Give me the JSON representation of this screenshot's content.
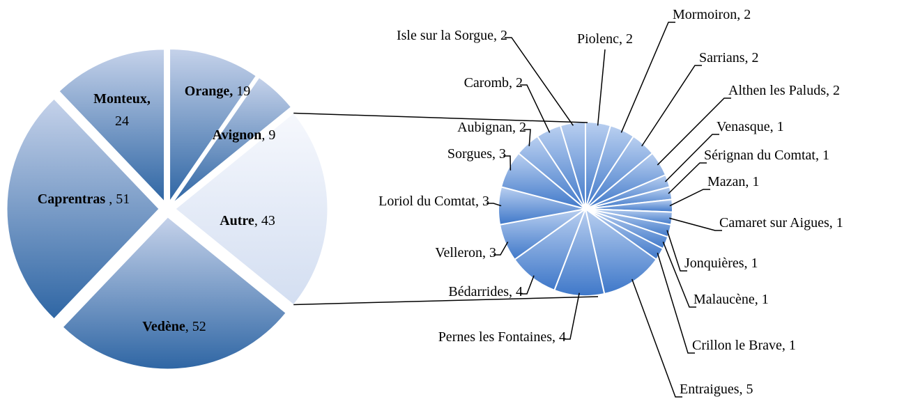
{
  "chart_data": [
    {
      "type": "pie",
      "categories": [
        "Orange,",
        "Avignon",
        "Autre",
        "Vedène",
        "Caprentras",
        "Monteux,"
      ],
      "values": [
        19,
        9,
        43,
        52,
        51,
        24
      ],
      "value_labels": [
        " 19",
        ", 9",
        ", 43",
        ", 52",
        " , 51",
        "24"
      ]
    },
    {
      "type": "pie",
      "categories": [
        "Piolenc",
        "Mormoiron",
        "Sarrians",
        "Althen les Paluds",
        "Venasque",
        "Sérignan du Comtat",
        "Mazan",
        "Camaret sur Aigues",
        "Jonquières",
        "Malaucène",
        "Crillon le Brave",
        "Entraigues",
        "Pernes les Fontaines",
        "Bédarrides",
        "Velleron",
        "Loriol du Comtat",
        "Sorgues",
        "Aubignan",
        "Caromb",
        "Isle sur la Sorgue"
      ],
      "values": [
        2,
        2,
        2,
        2,
        1,
        1,
        1,
        1,
        1,
        1,
        1,
        5,
        4,
        4,
        3,
        3,
        3,
        2,
        2,
        2
      ],
      "value_labels": [
        ", 2",
        ", 2",
        ", 2",
        ", 2",
        ", 1",
        ", 1",
        ", 1",
        ", 1",
        ", 1",
        ", 1",
        ", 1",
        ", 5",
        ", 4",
        ", 4",
        ", 3",
        ", 3",
        ", 3",
        ", 2",
        ", 2",
        ", 2"
      ]
    }
  ]
}
